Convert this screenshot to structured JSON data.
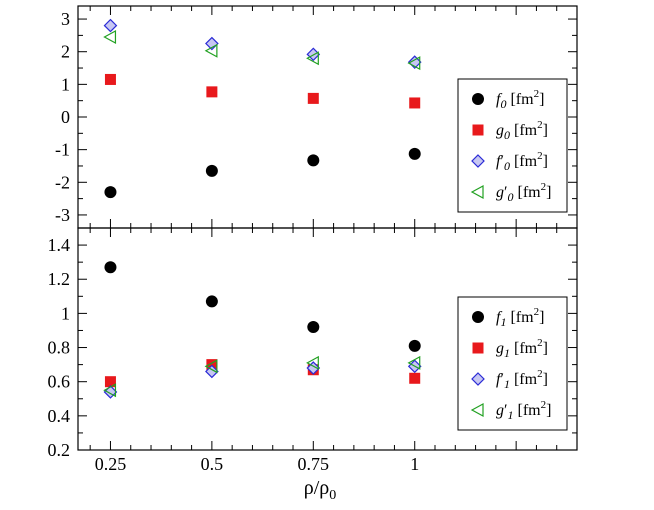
{
  "chart_data": [
    {
      "type": "scatter",
      "panel": "top",
      "xlabel": "ρ/ρ0",
      "ylabel": "",
      "xlim": [
        0.17,
        1.4
      ],
      "ylim": [
        -3.4,
        3.4
      ],
      "yticks": [
        3,
        2,
        1,
        0,
        -1,
        -2,
        -3
      ],
      "ytick_labels": [
        "3",
        "2",
        "1",
        "0",
        "-1",
        "-2",
        "-3"
      ],
      "x": [
        0.25,
        0.5,
        0.75,
        1.0
      ],
      "legend_position": "right",
      "series": [
        {
          "name": "f_0 [fm^2]",
          "sym": "f",
          "sub": "0",
          "prime": "",
          "unit": " [fm",
          "unit_sup": "2",
          "unit_close": "]",
          "marker": "circle",
          "color": "#000000",
          "values": [
            -2.3,
            -1.65,
            -1.33,
            -1.13
          ]
        },
        {
          "name": "g_0 [fm^2]",
          "sym": "g",
          "sub": "0",
          "prime": "",
          "unit": " [fm",
          "unit_sup": "2",
          "unit_close": "]",
          "marker": "square",
          "color": "#e8191c",
          "values": [
            1.15,
            0.77,
            0.57,
            0.43
          ]
        },
        {
          "name": "f'_0 [fm^2]",
          "sym": "f",
          "sub": "0",
          "prime": "′",
          "unit": " [fm",
          "unit_sup": "2",
          "unit_close": "]",
          "marker": "diamond",
          "color": "#2b2bd6",
          "values": [
            2.8,
            2.25,
            1.92,
            1.68
          ]
        },
        {
          "name": "g'_0 [fm^2]",
          "sym": "g",
          "sub": "0",
          "prime": "′",
          "unit": " [fm",
          "unit_sup": "2",
          "unit_close": "]",
          "marker": "triangle-left",
          "color": "#22a122",
          "values": [
            2.45,
            2.03,
            1.8,
            1.65
          ]
        }
      ]
    },
    {
      "type": "scatter",
      "panel": "bottom",
      "xlabel": "ρ/ρ0",
      "ylabel": "",
      "xlim": [
        0.17,
        1.4
      ],
      "ylim": [
        0.2,
        1.5
      ],
      "yticks": [
        1.4,
        1.2,
        1.0,
        0.8,
        0.6,
        0.4,
        0.2
      ],
      "ytick_labels": [
        "1.4",
        "1.2",
        "1",
        "0.8",
        "0.6",
        "0.4",
        "0.2"
      ],
      "xticks": [
        0.25,
        0.5,
        0.75,
        1.0
      ],
      "xtick_labels": [
        "0.25",
        "0.5",
        "0.75",
        "1"
      ],
      "x": [
        0.25,
        0.5,
        0.75,
        1.0
      ],
      "legend_position": "right",
      "series": [
        {
          "name": "f_1 [fm^2]",
          "sym": "f",
          "sub": "1",
          "prime": "",
          "unit": " [fm",
          "unit_sup": "2",
          "unit_close": "]",
          "marker": "circle",
          "color": "#000000",
          "values": [
            1.27,
            1.07,
            0.92,
            0.81
          ]
        },
        {
          "name": "g_1 [fm^2]",
          "sym": "g",
          "sub": "1",
          "prime": "",
          "unit": " [fm",
          "unit_sup": "2",
          "unit_close": "]",
          "marker": "square",
          "color": "#e8191c",
          "values": [
            0.6,
            0.7,
            0.67,
            0.62
          ]
        },
        {
          "name": "f'_1 [fm^2]",
          "sym": "f",
          "sub": "1",
          "prime": "′",
          "unit": " [fm",
          "unit_sup": "2",
          "unit_close": "]",
          "marker": "diamond",
          "color": "#2b2bd6",
          "values": [
            0.54,
            0.66,
            0.68,
            0.69
          ]
        },
        {
          "name": "g'_1 [fm^2]",
          "sym": "g",
          "sub": "1",
          "prime": "′",
          "unit": " [fm",
          "unit_sup": "2",
          "unit_close": "]",
          "marker": "triangle-left",
          "color": "#22a122",
          "values": [
            0.55,
            0.69,
            0.71,
            0.71
          ]
        }
      ]
    }
  ],
  "axis": {
    "xlabel_main": "ρ/ρ",
    "xlabel_sub": "0"
  }
}
